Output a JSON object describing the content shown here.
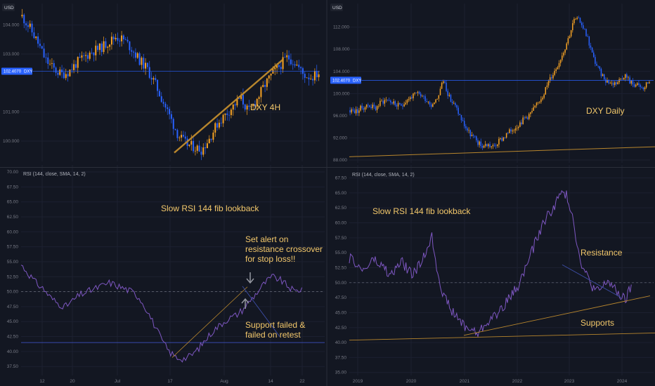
{
  "colors": {
    "background": "#131722",
    "grid": "#1c2030",
    "candle_up": "#f7a325",
    "candle_down": "#2962ff",
    "rsi_line": "#7e57c2",
    "trend_line": "#b8862d",
    "annotation_text": "#f3c86b",
    "price_tag": "#2962ff",
    "divider": "#2a2e39",
    "axis_text": "#787b86",
    "midline": "#6b6f7b",
    "resistance_line": "#3d4ea8",
    "support_hline": "#3949ab",
    "arrow": "#9598a1"
  },
  "chart_data": [
    {
      "id": "dxy-4h",
      "type": "candlestick",
      "currency_label": "USD",
      "price_tag": {
        "value": "102.4070",
        "symbol": "DXY"
      },
      "y_ticks": [
        "104.000",
        "103.000",
        "101.000",
        "100.000"
      ],
      "ylim": [
        99.3,
        104.5
      ],
      "x_ticks": [
        "12",
        "20",
        "Jul",
        "17",
        "Aug",
        "14",
        "22"
      ],
      "annotation": "DXY 4H",
      "close_path": [
        104.3,
        103.9,
        103.4,
        102.8,
        102.5,
        102.3,
        102.4,
        102.7,
        102.9,
        103.1,
        103.2,
        103.4,
        103.6,
        103.5,
        103.2,
        102.8,
        102.5,
        102.0,
        101.4,
        100.8,
        100.2,
        99.9,
        99.8,
        99.7,
        100.1,
        100.6,
        100.9,
        101.2,
        101.5,
        101.0,
        101.4,
        101.9,
        102.3,
        102.6,
        102.9,
        102.7,
        102.3,
        102.2,
        102.35
      ],
      "trendline": [
        [
          99.6,
          0.0
        ],
        [
          102.8,
          1.0
        ]
      ]
    },
    {
      "id": "dxy-daily",
      "type": "candlestick",
      "currency_label": "USD",
      "price_tag": {
        "value": "102.4070",
        "symbol": "DXY"
      },
      "y_ticks": [
        "112.000",
        "108.000",
        "104.000",
        "100.000",
        "96.000",
        "92.000",
        "88.000"
      ],
      "ylim": [
        87.5,
        115
      ],
      "annotation": "DXY Daily",
      "close_path": [
        97.0,
        96.8,
        97.5,
        98.0,
        97.3,
        98.5,
        99.0,
        98.2,
        97.6,
        98.8,
        99.5,
        100.0,
        99.2,
        98.0,
        99.3,
        102.5,
        99.0,
        97.5,
        95.0,
        93.0,
        91.8,
        90.5,
        90.8,
        90.3,
        91.5,
        92.5,
        93.5,
        94.5,
        95.5,
        96.5,
        98.0,
        100.0,
        102.5,
        104.5,
        107.0,
        110.0,
        113.5,
        113.0,
        110.5,
        106.5,
        104.0,
        102.5,
        101.8,
        102.2,
        103.5,
        102.0,
        101.5,
        100.8,
        102.4
      ],
      "trendline": [
        [
          88.6,
          0.0
        ],
        [
          90.4,
          1.0
        ]
      ]
    },
    {
      "id": "rsi-left",
      "type": "line",
      "indicator_label": "RSI (144, close, SMA, 14, 2)",
      "y_ticks": [
        "70.00",
        "67.50",
        "65.00",
        "62.50",
        "60.00",
        "57.50",
        "55.00",
        "52.50",
        "50.00",
        "47.50",
        "45.00",
        "42.50",
        "40.00",
        "37.50"
      ],
      "ylim": [
        36,
        70
      ],
      "title": "Slow RSI 144 fib lookback",
      "notes": [
        "Set alert on",
        "resistance crossover",
        "for stop loss!!"
      ],
      "notes2": [
        "Support failed &",
        "failed on retest"
      ],
      "rsi_path": [
        54.5,
        53.0,
        51.5,
        50.5,
        49.0,
        48.0,
        47.5,
        48.5,
        49.5,
        50.0,
        50.5,
        51.0,
        51.5,
        51.0,
        50.5,
        50.0,
        49.0,
        47.0,
        44.5,
        42.0,
        40.0,
        39.0,
        38.8,
        39.3,
        40.5,
        42.0,
        43.5,
        44.5,
        45.5,
        46.0,
        47.0,
        48.5,
        50.0,
        51.5,
        52.5,
        52.0,
        51.0,
        50.0,
        50.5
      ],
      "midline": 50.0,
      "support_hline": 41.5,
      "support_trendline": [
        [
          39.0,
          0.0
        ],
        [
          50.8,
          1.0
        ]
      ],
      "resistance_trendline": [
        [
          50.9,
          0.0
        ],
        [
          42.5,
          1.0
        ]
      ]
    },
    {
      "id": "rsi-right",
      "type": "line",
      "indicator_label": "RSI (144, close, SMA, 14, 2)",
      "y_ticks": [
        "67.50",
        "65.00",
        "62.50",
        "60.00",
        "57.50",
        "55.00",
        "52.50",
        "50.00",
        "47.50",
        "45.00",
        "42.50",
        "40.00",
        "37.50",
        "35.00"
      ],
      "ylim": [
        34.5,
        68.5
      ],
      "x_ticks": [
        "2019",
        "2020",
        "2021",
        "2022",
        "2023",
        "2024"
      ],
      "title": "Slow RSI 144 fib lookback",
      "resistance_label": "Resistance",
      "supports_label": "Supports",
      "rsi_path": [
        54.0,
        53.5,
        52.0,
        52.5,
        54.0,
        53.0,
        52.5,
        51.0,
        52.5,
        53.5,
        52.0,
        51.5,
        53.0,
        55.0,
        58.0,
        52.0,
        48.0,
        46.0,
        44.5,
        43.5,
        42.5,
        42.0,
        41.5,
        43.0,
        44.0,
        44.5,
        46.0,
        47.0,
        48.5,
        50.0,
        52.5,
        55.0,
        57.5,
        60.0,
        61.5,
        63.0,
        65.0,
        64.5,
        61.5,
        55.0,
        52.0,
        50.0,
        48.5,
        49.0,
        50.5,
        49.0,
        48.0,
        47.0,
        49.5
      ],
      "midline": 50.0,
      "resistance_trendline": [
        [
          53.0,
          0.0
        ],
        [
          47.5,
          1.0
        ]
      ],
      "support_line_upper": [
        [
          41.2,
          0.0
        ],
        [
          47.8,
          1.0
        ]
      ],
      "support_line_lower": [
        [
          40.4,
          0.0
        ],
        [
          41.6,
          1.0
        ]
      ]
    }
  ]
}
